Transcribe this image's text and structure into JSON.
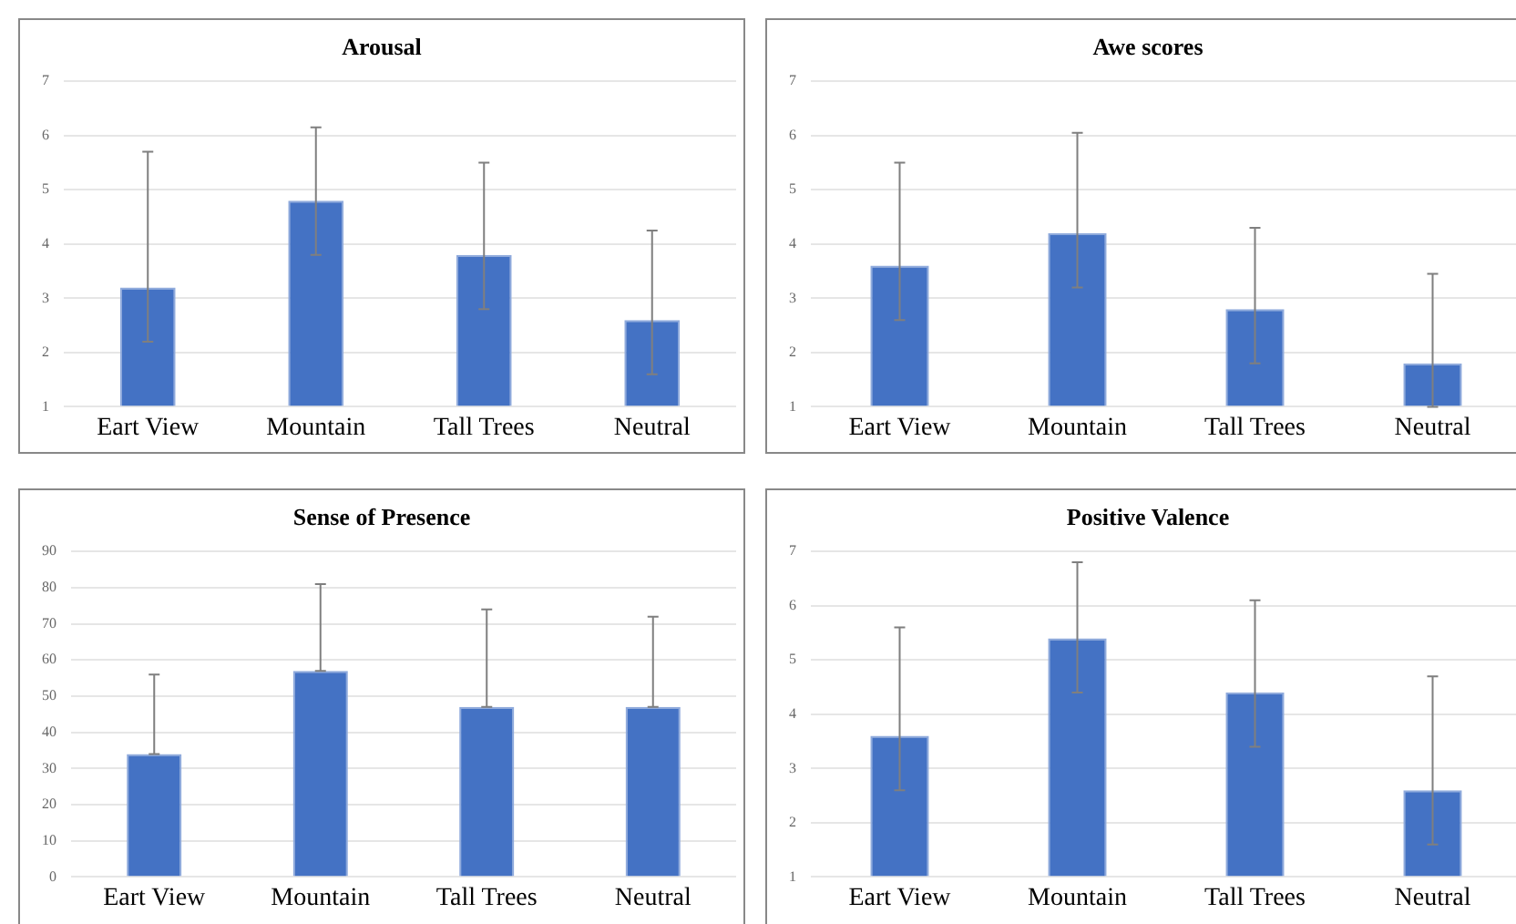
{
  "chart_data": [
    {
      "type": "bar",
      "title": "Arousal",
      "categories": [
        "Eart View",
        "Mountain",
        "Tall Trees",
        "Neutral"
      ],
      "values": [
        3.2,
        4.8,
        3.8,
        2.6
      ],
      "color": "#4472c4",
      "errors": [
        [
          2.2,
          5.7
        ],
        [
          3.8,
          6.15
        ],
        [
          2.8,
          5.5
        ],
        [
          1.6,
          4.25
        ]
      ],
      "ylim": [
        1,
        7
      ],
      "yticks": [
        1,
        2,
        3,
        4,
        5,
        6,
        7
      ],
      "grid": "y"
    },
    {
      "type": "bar",
      "title": "Awe scores",
      "categories": [
        "Eart View",
        "Mountain",
        "Tall Trees",
        "Neutral"
      ],
      "values": [
        3.6,
        4.2,
        2.8,
        1.8
      ],
      "color": "#4472c4",
      "errors": [
        [
          2.6,
          5.5
        ],
        [
          3.2,
          6.05
        ],
        [
          1.8,
          4.3
        ],
        [
          1,
          3.45
        ]
      ],
      "ylim": [
        1,
        7
      ],
      "yticks": [
        1,
        2,
        3,
        4,
        5,
        6,
        7
      ],
      "grid": "y"
    },
    {
      "type": "bar",
      "title": "Sense of Presence",
      "categories": [
        "Eart View",
        "Mountain",
        "Tall Trees",
        "Neutral"
      ],
      "values": [
        34,
        57,
        47,
        47
      ],
      "color": "#4472c4",
      "errors": [
        [
          34,
          56
        ],
        [
          57,
          81
        ],
        [
          47,
          74
        ],
        [
          47,
          72
        ]
      ],
      "ylim": [
        0,
        90
      ],
      "yticks": [
        0,
        10,
        20,
        30,
        40,
        50,
        60,
        70,
        80,
        90
      ],
      "grid": "y"
    },
    {
      "type": "bar",
      "title": "Positive Valence",
      "categories": [
        "Eart View",
        "Mountain",
        "Tall Trees",
        "Neutral"
      ],
      "values": [
        3.6,
        5.4,
        4.4,
        2.6
      ],
      "color": "#4472c4",
      "errors": [
        [
          2.6,
          5.6
        ],
        [
          4.4,
          6.8
        ],
        [
          3.4,
          6.1
        ],
        [
          1.6,
          4.7
        ]
      ],
      "ylim": [
        1,
        7
      ],
      "yticks": [
        1,
        2,
        3,
        4,
        5,
        6,
        7
      ],
      "grid": "y"
    }
  ]
}
